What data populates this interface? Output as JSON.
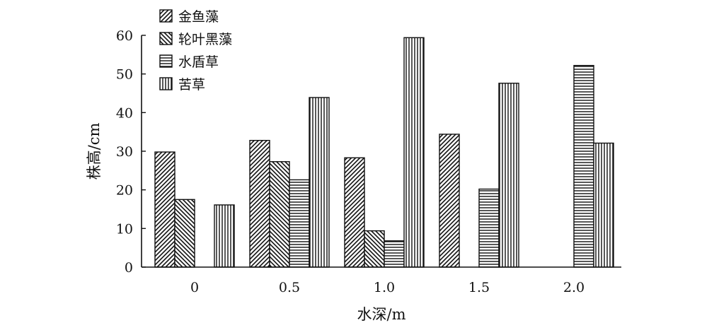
{
  "chart_data": {
    "type": "bar",
    "categories": [
      "0",
      "0.5",
      "1.0",
      "1.5",
      "2.0"
    ],
    "series": [
      {
        "name": "金鱼藻",
        "pattern": "diag-right",
        "values": [
          29.8,
          32.8,
          28.3,
          34.4,
          0
        ]
      },
      {
        "name": "轮叶黑藻",
        "pattern": "diag-left",
        "values": [
          17.5,
          27.3,
          9.4,
          0,
          0
        ]
      },
      {
        "name": "水盾草",
        "pattern": "horizontal",
        "values": [
          0,
          22.6,
          6.8,
          20.2,
          52.2
        ]
      },
      {
        "name": "苦草",
        "pattern": "vertical",
        "values": [
          16.1,
          43.9,
          59.4,
          47.6,
          32.1
        ]
      }
    ],
    "xlabel": "水深/m",
    "ylabel": "株高/cm",
    "ylim": [
      0,
      60
    ],
    "yticks": [
      "0",
      "10",
      "20",
      "30",
      "40",
      "50",
      "60"
    ],
    "grid": false,
    "legend_position": "top-left",
    "colors": {
      "ink": "#111111",
      "background": "#ffffff"
    }
  }
}
